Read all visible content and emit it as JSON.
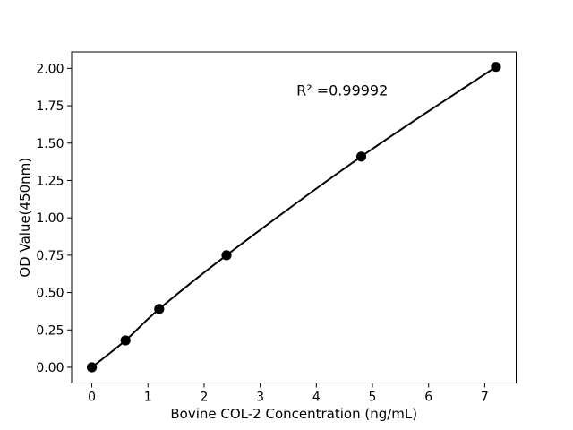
{
  "figure": {
    "background": "#ffffff",
    "text_color": "#000000",
    "axis_color": "#000000"
  },
  "chart_data": {
    "type": "line",
    "title": "",
    "xlabel": "Bovine COL-2 Concentration (ng/mL)",
    "ylabel": "OD Value(450nm)",
    "series": [
      {
        "name": "standard-curve",
        "x": [
          0,
          0.6,
          1.2,
          2.4,
          4.8,
          7.2
        ],
        "y": [
          0.0,
          0.18,
          0.39,
          0.75,
          1.41,
          2.01
        ],
        "color": "#000000",
        "line_width": 2,
        "marker": "circle",
        "marker_size": 5.6,
        "smooth": true
      }
    ],
    "xlim": [
      -0.36,
      7.56
    ],
    "ylim": [
      -0.105,
      2.11
    ],
    "xticks": [
      {
        "value": 0,
        "label": "0"
      },
      {
        "value": 1,
        "label": "1"
      },
      {
        "value": 2,
        "label": "2"
      },
      {
        "value": 3,
        "label": "3"
      },
      {
        "value": 4,
        "label": "4"
      },
      {
        "value": 5,
        "label": "5"
      },
      {
        "value": 6,
        "label": "6"
      },
      {
        "value": 7,
        "label": "7"
      }
    ],
    "yticks": [
      {
        "value": 0.0,
        "label": "0.00"
      },
      {
        "value": 0.25,
        "label": "0.25"
      },
      {
        "value": 0.5,
        "label": "0.50"
      },
      {
        "value": 0.75,
        "label": "0.75"
      },
      {
        "value": 1.0,
        "label": "1.00"
      },
      {
        "value": 1.25,
        "label": "1.25"
      },
      {
        "value": 1.5,
        "label": "1.50"
      },
      {
        "value": 1.75,
        "label": "1.75"
      },
      {
        "value": 2.0,
        "label": "2.00"
      }
    ],
    "grid": false,
    "legend": null,
    "annotation": {
      "text": "R² =0.99992",
      "x": 4.46,
      "y": 1.82
    }
  }
}
